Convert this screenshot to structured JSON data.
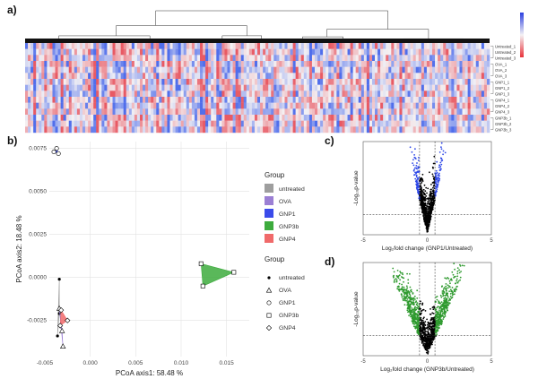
{
  "panels": {
    "a": "a)",
    "b": "b)",
    "c": "c)",
    "d": "d)"
  },
  "heatmap": {
    "row_labels": [
      "Untreated_1",
      "Untreated_2",
      "Untreated_3",
      "OVA_1",
      "OVA_2",
      "OVA_3",
      "GNP1_1",
      "GNP1_2",
      "GNP1_3",
      "GNP4_1",
      "GNP4_2",
      "GNP4_3",
      "GNP3b_1",
      "GNP3b_2",
      "GNP3b_3"
    ],
    "colors": {
      "high": "#2b3fe0",
      "mid": "#f4f2f4",
      "low": "#e8323a"
    }
  },
  "chart_data": [
    {
      "type": "scatter",
      "panel": "b",
      "xlabel": "PCoA axis1:  58.48 %",
      "ylabel": "PCoA axis2:  18.48 %",
      "xlim": [
        -0.0045,
        0.0175
      ],
      "ylim": [
        -0.0046,
        0.0079
      ],
      "x_ticks": [
        -0.005,
        0.0,
        0.005,
        0.01,
        0.015
      ],
      "x_tick_labels": [
        "-0.005",
        "0.000",
        "0.005",
        "0.010",
        "0.015"
      ],
      "y_ticks": [
        -0.0025,
        0.0,
        0.0025,
        0.005,
        0.0075
      ],
      "y_tick_labels": [
        "-0.0025",
        "0.0000",
        "0.0025",
        "0.0050",
        "0.0075"
      ],
      "grid": true,
      "legend_position": "right",
      "legend_fill_title": "Group",
      "legend_shape_title": "Group",
      "series": [
        {
          "name": "untreated",
          "color": "#9e9e9e",
          "marker": "dot",
          "points": [
            [
              -0.0034,
              -0.0001
            ],
            [
              -0.0036,
              -0.0034
            ],
            [
              -0.0034,
              -0.0021
            ]
          ]
        },
        {
          "name": "OVA",
          "color": "#9b7fd4",
          "marker": "triangle",
          "points": [
            [
              -0.003,
              -0.004
            ],
            [
              -0.0034,
              -0.0018
            ],
            [
              -0.0031,
              -0.0031
            ]
          ]
        },
        {
          "name": "GNP1",
          "color": "#3a4bea",
          "marker": "circle",
          "points": [
            [
              -0.004,
              0.0073
            ],
            [
              -0.0035,
              0.0072
            ],
            [
              -0.0037,
              0.0075
            ]
          ]
        },
        {
          "name": "GNP3b",
          "color": "#3dab3d",
          "marker": "square",
          "points": [
            [
              0.0122,
              0.0008
            ],
            [
              0.0158,
              0.0003
            ],
            [
              0.0124,
              -0.0005
            ]
          ]
        },
        {
          "name": "GNP4",
          "color": "#f06a6a",
          "marker": "diamond",
          "points": [
            [
              -0.0032,
              -0.0019
            ],
            [
              -0.0025,
              -0.0025
            ],
            [
              -0.0033,
              -0.0028
            ]
          ]
        }
      ]
    },
    {
      "type": "scatter",
      "panel": "c",
      "xlabel": "Log₂fold change (GNP1/Untreated)",
      "ylabel": "-Log₁₀p-value",
      "xlim": [
        -5,
        5
      ],
      "x_tick_labels": [
        "-5",
        "0",
        "5"
      ],
      "highlight_color": "#2e48e8",
      "base_color": "#000000",
      "vertical_thresholds": [
        -0.6,
        0.6
      ],
      "horizontal_threshold": 1.3
    },
    {
      "type": "scatter",
      "panel": "d",
      "xlabel": "Log₂fold change (GNP3b/Untreated)",
      "ylabel": "-Log₁₀p-value",
      "xlim": [
        -5,
        5
      ],
      "x_tick_labels": [
        "-5",
        "0",
        "5"
      ],
      "highlight_color": "#2f9a2f",
      "base_color": "#000000",
      "vertical_thresholds": [
        -0.6,
        0.6
      ],
      "horizontal_threshold": 1.3
    }
  ]
}
